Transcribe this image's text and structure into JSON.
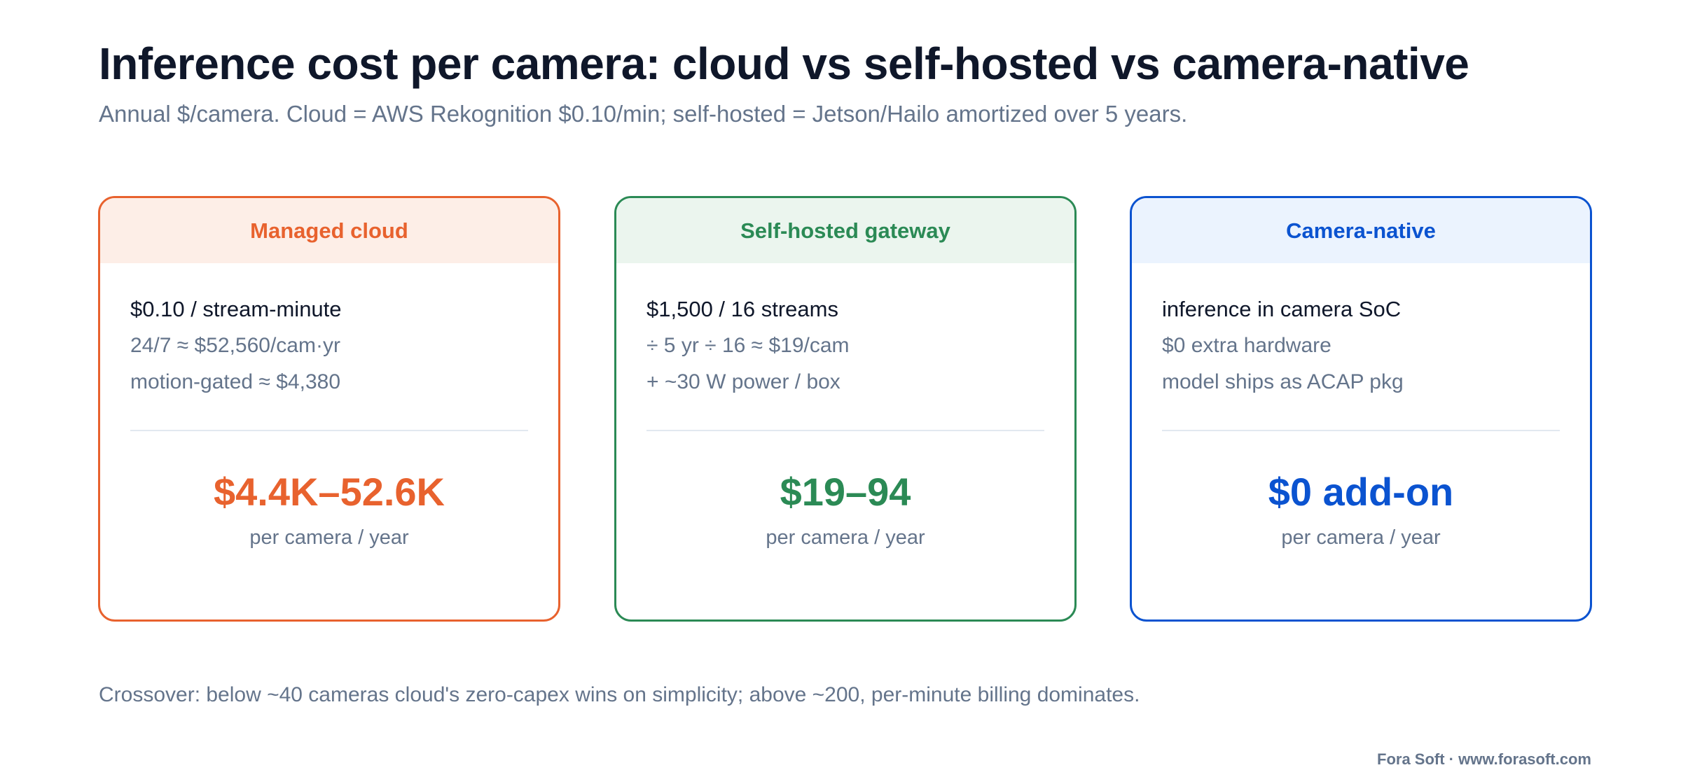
{
  "title": "Inference cost per camera: cloud vs self-hosted vs camera-native",
  "subtitle": "Annual $/camera. Cloud = AWS Rekognition $0.10/min; self-hosted = Jetson/Hailo amortized over 5 years.",
  "cards": [
    {
      "header": "Managed cloud",
      "accent": "#e8622e",
      "header_bg": "#fdeee7",
      "lines": [
        "$0.10 / stream-minute",
        "24/7 ≈ $52,560/cam·yr",
        "motion-gated ≈ $4,380"
      ],
      "value": "$4.4K–52.6K",
      "unit": "per camera / year"
    },
    {
      "header": "Self-hosted gateway",
      "accent": "#2b8a55",
      "header_bg": "#ebf5ee",
      "lines": [
        "$1,500 / 16 streams",
        "÷ 5 yr ÷ 16 ≈ $19/cam",
        "+ ~30 W power / box"
      ],
      "value": "$19–94",
      "unit": "per camera / year"
    },
    {
      "header": "Camera-native",
      "accent": "#0b53d0",
      "header_bg": "#ebf3fe",
      "lines": [
        "inference in camera SoC",
        "$0 extra hardware",
        "model ships as ACAP pkg"
      ],
      "value": "$0 add-on",
      "unit": "per camera / year"
    }
  ],
  "footnote": "Crossover: below ~40 cameras cloud's zero-capex wins on simplicity; above ~200, per-minute billing dominates.",
  "credit": "Fora Soft · www.forasoft.com"
}
